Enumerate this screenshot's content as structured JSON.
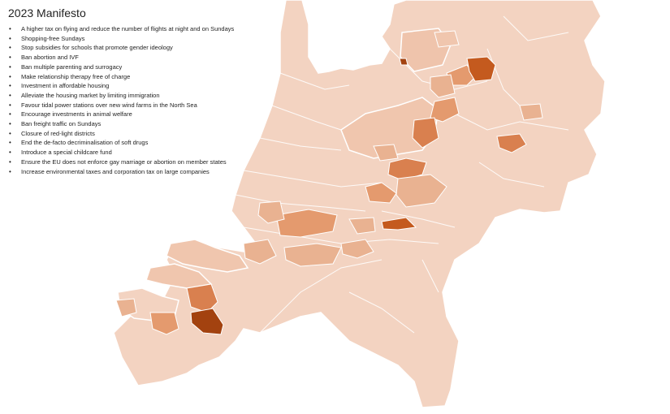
{
  "title": "2023 Manifesto",
  "items": [
    "A higher tax on flying and reduce the number of flights at night and on Sundays",
    "Shopping-free Sundays",
    "Stop subsidies for schools that promote gender ideology",
    "Ban abortion and IVF",
    "Ban multiple parenting and surrogacy",
    "Make relationship therapy free of charge",
    "Investment in affordable housing",
    "Alleviate the housing market by limiting immigration",
    "Favour tidal power stations over new wind farms in the North Sea",
    "Encourage investments in animal welfare",
    "Ban freight traffic on Sundays",
    "Closure of red-light districts",
    "End the de-facto decriminalisation of soft drugs",
    "Introduce a special childcare fund",
    "Ensure the EU does not enforce gay marriage or abortion on member states",
    "Increase environmental taxes and corporation tax on large companies"
  ],
  "map": {
    "icon": "netherlands-municipality-choropleth-map",
    "colors": {
      "land_base": "#f3d3c1",
      "land_light": "#f0c6ae",
      "level_low": "#e9b291",
      "level_mid": "#e49a6e",
      "level_high": "#d9804f",
      "level_max": "#c45a1e",
      "level_darkest": "#a3420f",
      "border": "#ffffff"
    }
  }
}
